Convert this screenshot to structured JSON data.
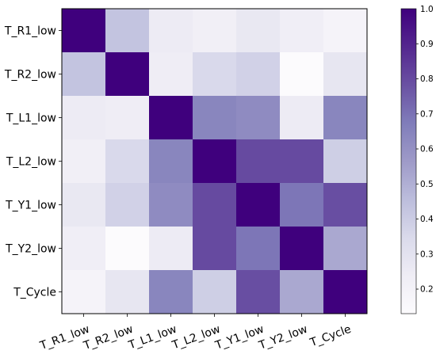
{
  "chart_data": {
    "type": "heatmap",
    "title": "",
    "xlabel": "",
    "ylabel": "",
    "row_labels": [
      "T_R1_low",
      "T_R2_low",
      "T_L1_low",
      "T_L2_low",
      "T_Y1_low",
      "T_Y2_low",
      "T_Cycle"
    ],
    "col_labels": [
      "T_R1_low",
      "T_R2_low",
      "T_L1_low",
      "T_L2_low",
      "T_Y1_low",
      "T_Y2_low",
      "T_Cycle"
    ],
    "values": [
      [
        1.0,
        0.43,
        0.25,
        0.22,
        0.27,
        0.23,
        0.19
      ],
      [
        0.43,
        1.0,
        0.24,
        0.35,
        0.38,
        0.13,
        0.28
      ],
      [
        0.25,
        0.24,
        1.0,
        0.64,
        0.62,
        0.25,
        0.64
      ],
      [
        0.22,
        0.35,
        0.64,
        1.0,
        0.8,
        0.8,
        0.39
      ],
      [
        0.27,
        0.38,
        0.62,
        0.8,
        1.0,
        0.69,
        0.79
      ],
      [
        0.23,
        0.13,
        0.25,
        0.8,
        0.69,
        1.0,
        0.52
      ],
      [
        0.19,
        0.28,
        0.64,
        0.39,
        0.79,
        0.52,
        1.0
      ]
    ],
    "colorbar": {
      "colormap": "Purples",
      "range": [
        0.13,
        1.0
      ],
      "ticks": [
        0.2,
        0.3,
        0.4,
        0.5,
        0.6,
        0.7,
        0.8,
        0.9
      ],
      "tick_labels": [
        "0.2",
        "0.3",
        "0.4",
        "0.5",
        "0.6",
        "0.7",
        "0.8",
        "0.9"
      ],
      "top_label": "1.0"
    },
    "grid": false
  }
}
